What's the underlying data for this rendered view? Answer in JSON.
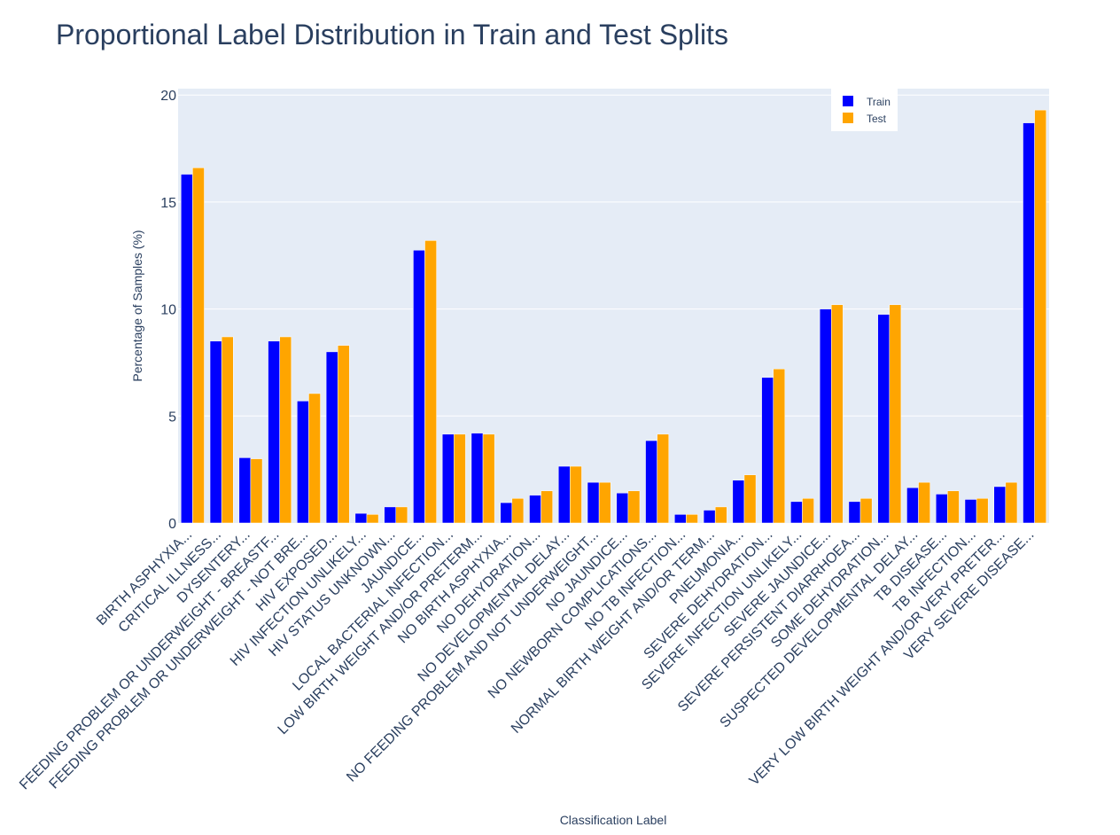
{
  "chart_data": {
    "type": "bar",
    "title": "Proportional Label Distribution in Train and Test Splits",
    "xlabel": "Classification Label",
    "ylabel": "Percentage of Samples (%)",
    "ylim": [
      0,
      20.3
    ],
    "yticks": [
      0,
      5,
      10,
      15,
      20
    ],
    "categories": [
      "BIRTH ASPHYXIA...",
      "CRITICAL ILLNESS...",
      "DYSENTERY...",
      "FEEDING PROBLEM OR UNDERWEIGHT - BREASTF...",
      "FEEDING PROBLEM OR UNDERWEIGHT - NOT BRE...",
      "HIV EXPOSED...",
      "HIV INFECTION UNLIKELY...",
      "HIV STATUS UNKNOWN...",
      "JAUNDICE...",
      "LOCAL BACTERIAL INFECTION...",
      "LOW BIRTH WEIGHT AND/OR PRETERM...",
      "NO BIRTH ASPHYXIA...",
      "NO DEHYDRATION...",
      "NO DEVELOPMENTAL DELAY...",
      "NO FEEDING PROBLEM AND NOT UNDERWEIGHT...",
      "NO JAUNDICE...",
      "NO NEWBORN COMPLICATIONS...",
      "NO TB INFECTION...",
      "NORMAL BIRTH WEIGHT AND/OR TERM...",
      "PNEUMONIA...",
      "SEVERE DEHYDRATION...",
      "SEVERE INFECTION UNLIKELY...",
      "SEVERE JAUNDICE...",
      "SEVERE PERSISTENT DIARRHOEA...",
      "SOME DEHYDRATION...",
      "SUSPECTED DEVELOPMENTAL DELAY...",
      "TB DISEASE...",
      "TB INFECTION...",
      "VERY LOW BIRTH WEIGHT AND/OR VERY PRETER...",
      "VERY SEVERE DISEASE..."
    ],
    "series": [
      {
        "name": "Train",
        "color": "#0000ff",
        "values": [
          16.3,
          8.5,
          3.05,
          8.5,
          5.7,
          8.0,
          0.45,
          0.75,
          12.75,
          4.15,
          4.2,
          0.95,
          1.3,
          2.65,
          1.9,
          1.4,
          3.85,
          0.4,
          0.6,
          2.0,
          6.8,
          1.0,
          10.0,
          1.0,
          9.75,
          1.65,
          1.35,
          1.1,
          1.7,
          18.7
        ]
      },
      {
        "name": "Test",
        "color": "#ffa500",
        "values": [
          16.6,
          8.7,
          3.0,
          8.7,
          6.05,
          8.3,
          0.4,
          0.75,
          13.2,
          4.15,
          4.15,
          1.15,
          1.5,
          2.65,
          1.9,
          1.5,
          4.15,
          0.4,
          0.75,
          2.25,
          7.2,
          1.15,
          10.2,
          1.15,
          10.2,
          1.9,
          1.5,
          1.15,
          1.9,
          19.3
        ]
      }
    ],
    "legend_position": "top-right"
  }
}
